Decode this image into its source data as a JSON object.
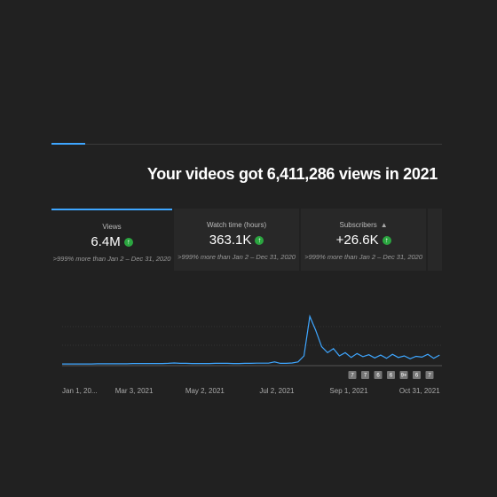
{
  "header": {
    "title": "Your videos got 6,411,286 views in 2021"
  },
  "cards": [
    {
      "label": "Views",
      "value": "6.4M",
      "change": ">999% more than Jan 2 – Dec 31, 2020"
    },
    {
      "label": "Watch time (hours)",
      "value": "363.1K",
      "change": ">999% more than Jan 2 – Dec 31, 2020"
    },
    {
      "label": "Subscribers",
      "value": "+26.6K",
      "change": ">999% more than Jan 2 – Dec 31, 2020"
    }
  ],
  "markers": [
    "7",
    "7",
    "6",
    "6",
    "9+",
    "6",
    "7"
  ],
  "chart_data": {
    "type": "line",
    "x": [
      0,
      5,
      10,
      15,
      20,
      25,
      30,
      35,
      40,
      45,
      50,
      55,
      60,
      65,
      70,
      75,
      80,
      85,
      90,
      95,
      100,
      105,
      110,
      115,
      120,
      125,
      130,
      135,
      140,
      145,
      150,
      155,
      160,
      165,
      170,
      175,
      180,
      185,
      190,
      195,
      200,
      205,
      210,
      215,
      220,
      225,
      230,
      235,
      240,
      245,
      250,
      255,
      260,
      265,
      270,
      275,
      280,
      285,
      290,
      295,
      300,
      305,
      310,
      315,
      320
    ],
    "values": [
      2000,
      2000,
      2000,
      2000,
      2000,
      2000,
      2500,
      2500,
      2500,
      2500,
      2500,
      2500,
      3000,
      3000,
      3000,
      3000,
      3000,
      3000,
      3500,
      4500,
      3500,
      3500,
      3000,
      3000,
      3000,
      3000,
      3500,
      3500,
      3500,
      3000,
      3000,
      3500,
      3500,
      4000,
      4000,
      4000,
      7000,
      3500,
      3500,
      4500,
      7000,
      22000,
      120000,
      85000,
      45000,
      30000,
      40000,
      22000,
      30000,
      18000,
      28000,
      20000,
      25000,
      17000,
      24000,
      16000,
      26000,
      18000,
      22000,
      15000,
      21000,
      19000,
      26000,
      16000,
      24000
    ],
    "series_color": "#3ea6ff",
    "xlim": [
      0,
      322
    ],
    "ylim": [
      0,
      130000
    ],
    "xticks": [
      {
        "value": 0,
        "label": "Jan 1, 20..."
      },
      {
        "value": 61,
        "label": "Mar 3, 2021"
      },
      {
        "value": 121,
        "label": "May 2, 2021"
      },
      {
        "value": 182,
        "label": "Jul 2, 2021"
      },
      {
        "value": 243,
        "label": "Sep 1, 2021"
      },
      {
        "value": 303,
        "label": "Oct 31, 2021"
      }
    ]
  }
}
